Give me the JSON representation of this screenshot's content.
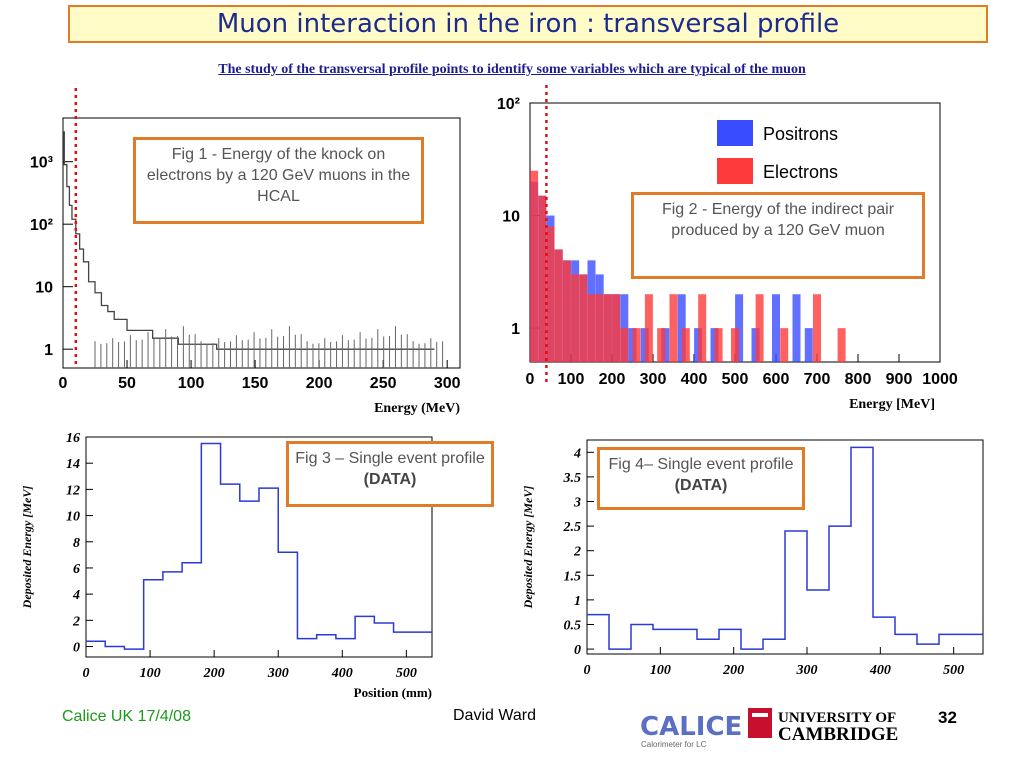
{
  "title": "Muon interaction in the iron : transversal profile",
  "subtitle": "The study of the transversal profile points to identify some variables which are typical of the muon",
  "callouts": {
    "fig1": "Fig 1 - Energy of the knock on electrons by a 120 GeV muons in the HCAL",
    "fig2": "Fig 2 - Energy of the indirect pair produced by a 120 GeV muon",
    "fig3_text": "Fig 3 – Single event profile",
    "fig3_bold": "(DATA)",
    "fig4_text": "Fig 4– Single event profile",
    "fig4_bold": "(DATA)"
  },
  "footer": {
    "left": "Calice UK 17/4/08",
    "center": "David Ward",
    "page": "32",
    "logo_calice": "CALICE",
    "logo_calice_sub": "Calorimeter for LC",
    "logo_cambridge_1": "UNIVERSITY OF",
    "logo_cambridge_2": "CAMBRIDGE"
  },
  "colors": {
    "orange": "#e07b28",
    "blue_hist": "#2a3ad4",
    "positron": "#3a4cff",
    "electron": "#ff3a3a",
    "cutline": "#e01010"
  },
  "chart_data": [
    {
      "type": "line",
      "name": "fig1",
      "xlabel": "Energy (MeV)",
      "ylabel": "",
      "xlim": [
        0,
        310
      ],
      "log_y": true,
      "ylim": [
        0.5,
        5000
      ],
      "xticks": [
        "0",
        "50",
        "100",
        "150",
        "200",
        "250",
        "300"
      ],
      "yticks": [
        "1",
        "10",
        "10^2",
        "10^3"
      ],
      "cut_x": 10,
      "x": [
        1,
        3,
        5,
        7,
        10,
        13,
        16,
        20,
        25,
        30,
        35,
        40,
        45,
        50,
        55,
        60,
        70,
        80,
        90,
        100,
        120,
        140,
        160,
        180,
        200,
        230,
        260,
        290
      ],
      "y": [
        3000,
        900,
        400,
        200,
        120,
        70,
        40,
        25,
        12,
        8,
        5,
        4,
        3,
        3,
        2,
        2,
        2,
        1.5,
        1.5,
        1.2,
        1.2,
        1,
        1,
        1,
        1,
        1,
        1,
        1
      ]
    },
    {
      "type": "bar",
      "name": "fig2",
      "xlabel": "Energy [MeV]",
      "xlim": [
        0,
        1000
      ],
      "log_y": true,
      "ylim": [
        0.5,
        100
      ],
      "xticks": [
        "0",
        "100",
        "200",
        "300",
        "400",
        "500",
        "600",
        "700",
        "800",
        "900",
        "1000"
      ],
      "yticks": [
        "1",
        "10",
        "10^2"
      ],
      "cut_x": 40,
      "legend": [
        "Positrons",
        "Electrons"
      ],
      "series": [
        {
          "name": "Positrons",
          "x": [
            10,
            30,
            50,
            70,
            90,
            110,
            130,
            150,
            170,
            190,
            210,
            230,
            250,
            280,
            330,
            370,
            410,
            450,
            510,
            550,
            600,
            650,
            680
          ],
          "y": [
            20,
            15,
            10,
            5,
            4,
            4,
            3,
            4,
            3,
            2,
            2,
            2,
            1,
            1,
            1,
            2,
            1,
            1,
            2,
            1,
            2,
            2,
            1
          ]
        },
        {
          "name": "Electrons",
          "x": [
            10,
            30,
            50,
            70,
            90,
            110,
            130,
            150,
            170,
            190,
            210,
            230,
            260,
            290,
            320,
            350,
            380,
            420,
            460,
            500,
            560,
            620,
            700,
            760
          ],
          "y": [
            25,
            15,
            8,
            5,
            4,
            3,
            3,
            2,
            2,
            2,
            2,
            1,
            1,
            2,
            1,
            2,
            1,
            2,
            1,
            1,
            2,
            1,
            2,
            1
          ]
        }
      ]
    },
    {
      "type": "line",
      "name": "fig3",
      "xlabel": "Position (mm)",
      "ylabel": "Deposited Energy [MeV]",
      "xlim": [
        0,
        540
      ],
      "ylim": [
        -0.8,
        16
      ],
      "yticks": [
        0,
        2,
        4,
        6,
        8,
        10,
        12,
        14,
        16
      ],
      "xticks": [
        0,
        100,
        200,
        300,
        400,
        500
      ],
      "bin_width": 30,
      "bin_starts": [
        0,
        30,
        60,
        90,
        120,
        150,
        180,
        210,
        240,
        270,
        300,
        330,
        360,
        390,
        420,
        450,
        480,
        510
      ],
      "values": [
        0.4,
        0,
        -0.2,
        5.1,
        5.7,
        6.4,
        15.5,
        12.4,
        11.1,
        12.1,
        7.2,
        0.6,
        0.9,
        0.6,
        2.3,
        1.8,
        1.1,
        1.1
      ]
    },
    {
      "type": "line",
      "name": "fig4",
      "xlabel": "",
      "ylabel": "Deposited Energy [MeV]",
      "xlim": [
        0,
        540
      ],
      "ylim": [
        -0.1,
        4.25
      ],
      "yticks": [
        0,
        0.5,
        1,
        1.5,
        2,
        2.5,
        3,
        3.5,
        4
      ],
      "xticks": [
        0,
        100,
        200,
        300,
        400,
        500
      ],
      "bin_width": 30,
      "bin_starts": [
        0,
        30,
        60,
        90,
        120,
        150,
        180,
        210,
        240,
        270,
        300,
        330,
        360,
        390,
        420,
        450,
        480,
        510
      ],
      "values": [
        0.7,
        0,
        0.5,
        0.4,
        0.4,
        0.2,
        0.4,
        0,
        0.2,
        2.4,
        1.2,
        2.5,
        4.1,
        0.65,
        0.3,
        0.1,
        0.3,
        0.3
      ]
    }
  ]
}
